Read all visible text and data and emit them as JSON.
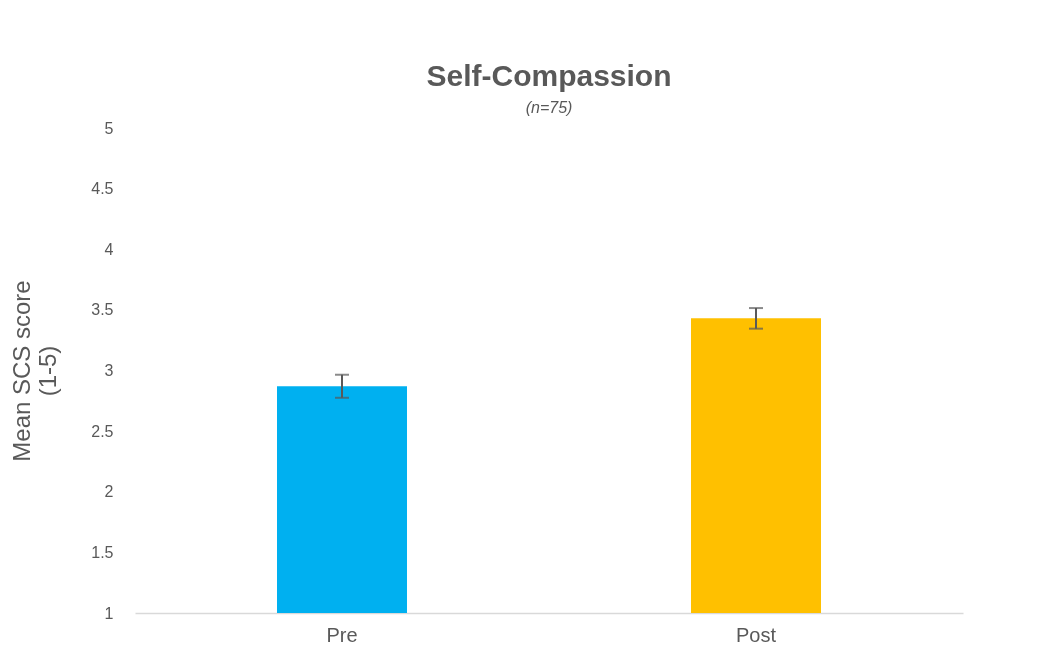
{
  "chart_data": {
    "type": "bar",
    "title": "Self-Compassion",
    "subtitle": "(n=75)",
    "ylabel": "Mean SCS score\n(1-5)",
    "categories": [
      "Pre",
      "Post"
    ],
    "values": [
      2.87,
      3.43
    ],
    "colors": [
      "#00b0f0",
      "#ffc000"
    ],
    "errors": [
      0.095,
      0.085
    ],
    "ylim": [
      1,
      5
    ],
    "yticks": [
      1,
      1.5,
      2,
      2.5,
      3,
      3.5,
      4,
      4.5,
      5
    ],
    "grid": false,
    "legend": false
  }
}
